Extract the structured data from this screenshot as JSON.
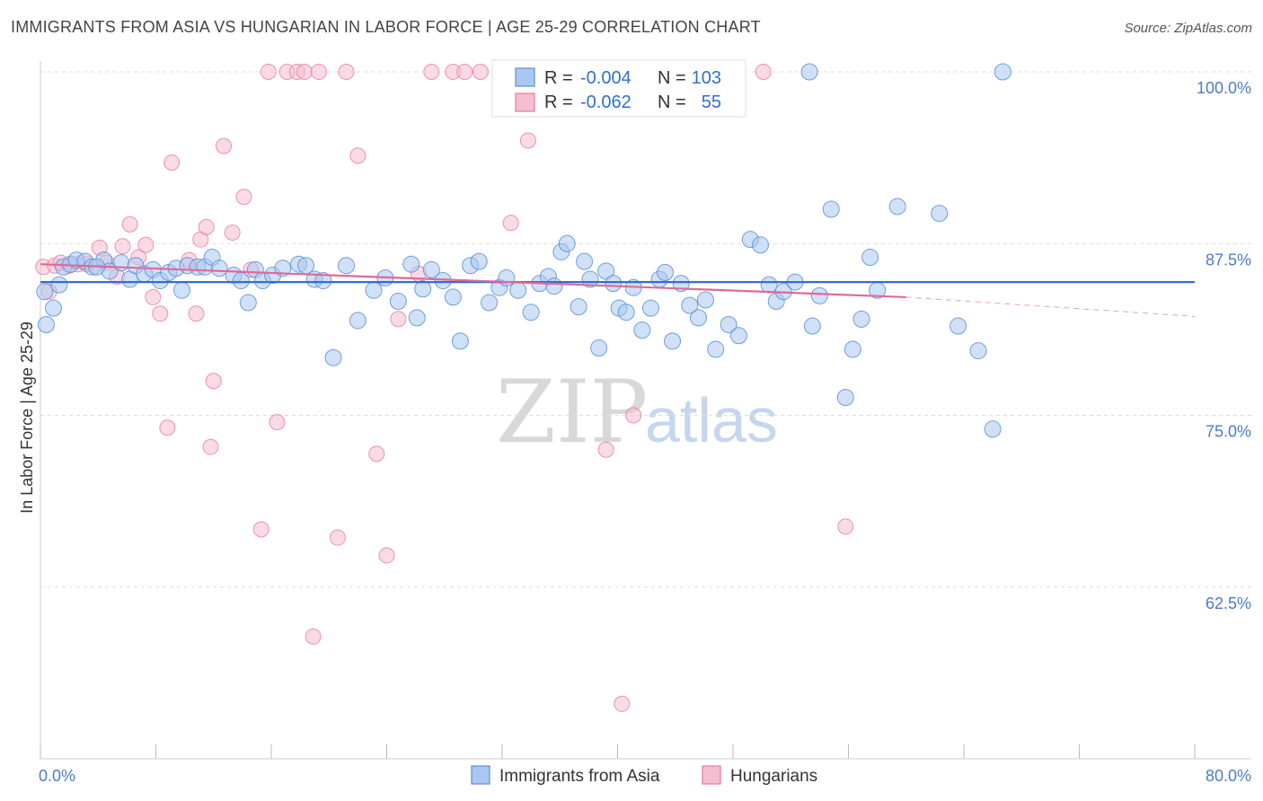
{
  "title": "IMMIGRANTS FROM ASIA VS HUNGARIAN IN LABOR FORCE | AGE 25-29 CORRELATION CHART",
  "source": "Source: ZipAtlas.com",
  "watermark": {
    "zip": "ZIP",
    "atlas": "atlas"
  },
  "colors": {
    "blue": "#5b8ed8",
    "blue_fill": "#a9c8f0",
    "pink": "#e8799f",
    "pink_fill": "#f5bdd0",
    "axis_text": "#4a7cc9"
  },
  "legend": {
    "r_label": "R =",
    "n_label": "N =",
    "series": [
      {
        "name": "Immigrants from Asia",
        "r": "-0.004",
        "n": "103"
      },
      {
        "name": "Hungarians",
        "r": "-0.062",
        "n": "55"
      }
    ]
  },
  "chart_data": {
    "type": "scatter",
    "title": "IMMIGRANTS FROM ASIA VS HUNGARIAN IN LABOR FORCE | AGE 25-29 CORRELATION CHART",
    "xlabel": "",
    "ylabel": "In Labor Force | Age 25-29",
    "xlim": [
      0,
      80
    ],
    "ylim": [
      50,
      100
    ],
    "x_tick_labels": [
      "0.0%",
      "80.0%"
    ],
    "y_ticks": [
      62.5,
      75.0,
      87.5,
      100.0
    ],
    "y_tick_labels": [
      "62.5%",
      "75.0%",
      "87.5%",
      "100.0%"
    ],
    "grid": true,
    "series": [
      {
        "name": "Immigrants from Asia",
        "r": -0.004,
        "n": 103,
        "trend": {
          "x": [
            0,
            80
          ],
          "y": [
            84.7,
            84.7
          ]
        },
        "points": [
          [
            0.4,
            81.6
          ],
          [
            0.9,
            82.8
          ],
          [
            1.3,
            84.5
          ],
          [
            1.6,
            85.8
          ],
          [
            2.1,
            86.0
          ],
          [
            2.5,
            86.3
          ],
          [
            3.1,
            86.2
          ],
          [
            3.6,
            85.8
          ],
          [
            4.4,
            86.3
          ],
          [
            4.8,
            85.5
          ],
          [
            5.6,
            86.1
          ],
          [
            6.2,
            84.9
          ],
          [
            6.6,
            85.9
          ],
          [
            7.2,
            85.3
          ],
          [
            7.8,
            85.6
          ],
          [
            8.3,
            84.8
          ],
          [
            8.9,
            85.4
          ],
          [
            9.4,
            85.7
          ],
          [
            9.8,
            84.1
          ],
          [
            10.2,
            85.9
          ],
          [
            10.9,
            85.8
          ],
          [
            11.4,
            85.8
          ],
          [
            11.9,
            86.5
          ],
          [
            12.4,
            85.7
          ],
          [
            13.4,
            85.2
          ],
          [
            13.9,
            84.8
          ],
          [
            14.4,
            83.2
          ],
          [
            14.9,
            85.6
          ],
          [
            15.4,
            84.8
          ],
          [
            16.1,
            85.2
          ],
          [
            16.8,
            85.7
          ],
          [
            17.9,
            86.0
          ],
          [
            18.4,
            85.9
          ],
          [
            19.0,
            84.9
          ],
          [
            19.6,
            84.8
          ],
          [
            20.3,
            79.2
          ],
          [
            21.2,
            85.9
          ],
          [
            22.0,
            81.9
          ],
          [
            23.1,
            84.1
          ],
          [
            23.9,
            85.0
          ],
          [
            24.8,
            83.3
          ],
          [
            25.7,
            86.0
          ],
          [
            26.1,
            82.1
          ],
          [
            26.5,
            84.2
          ],
          [
            27.1,
            85.6
          ],
          [
            27.9,
            84.8
          ],
          [
            28.6,
            83.6
          ],
          [
            29.1,
            80.4
          ],
          [
            29.8,
            85.9
          ],
          [
            30.4,
            86.2
          ],
          [
            31.1,
            83.2
          ],
          [
            31.8,
            84.3
          ],
          [
            32.3,
            85.0
          ],
          [
            33.1,
            84.1
          ],
          [
            34.0,
            82.5
          ],
          [
            34.6,
            84.6
          ],
          [
            35.2,
            85.1
          ],
          [
            35.6,
            84.4
          ],
          [
            36.1,
            86.9
          ],
          [
            36.5,
            87.5
          ],
          [
            37.3,
            82.9
          ],
          [
            37.7,
            86.2
          ],
          [
            38.1,
            84.9
          ],
          [
            38.7,
            79.9
          ],
          [
            39.2,
            85.5
          ],
          [
            39.7,
            84.6
          ],
          [
            40.1,
            82.8
          ],
          [
            40.6,
            82.5
          ],
          [
            41.1,
            84.3
          ],
          [
            41.7,
            81.2
          ],
          [
            42.3,
            82.8
          ],
          [
            42.9,
            84.9
          ],
          [
            43.3,
            85.4
          ],
          [
            43.8,
            80.4
          ],
          [
            44.4,
            84.6
          ],
          [
            45.0,
            83.0
          ],
          [
            45.6,
            82.1
          ],
          [
            46.1,
            83.4
          ],
          [
            46.8,
            79.8
          ],
          [
            47.7,
            81.6
          ],
          [
            48.4,
            80.8
          ],
          [
            49.2,
            87.8
          ],
          [
            49.9,
            87.4
          ],
          [
            50.5,
            84.5
          ],
          [
            51.0,
            83.3
          ],
          [
            51.5,
            84.0
          ],
          [
            52.3,
            84.7
          ],
          [
            53.5,
            81.5
          ],
          [
            54.0,
            83.7
          ],
          [
            54.8,
            90.0
          ],
          [
            55.8,
            76.3
          ],
          [
            56.3,
            79.8
          ],
          [
            56.9,
            82.0
          ],
          [
            57.5,
            86.5
          ],
          [
            58.0,
            84.1
          ],
          [
            59.4,
            90.2
          ],
          [
            62.3,
            89.7
          ],
          [
            63.6,
            81.5
          ],
          [
            65.0,
            79.7
          ],
          [
            66.0,
            74.0
          ],
          [
            0.3,
            84.0
          ],
          [
            3.9,
            85.8
          ],
          [
            53.3,
            100.0
          ],
          [
            66.7,
            100.0
          ]
        ]
      },
      {
        "name": "Hungarians",
        "r": -0.062,
        "n": 55,
        "trend": {
          "x": [
            0,
            60
          ],
          "y": [
            86.0,
            83.6
          ]
        },
        "trend_extension": {
          "x": [
            60,
            80
          ],
          "y": [
            83.6,
            82.2
          ]
        },
        "points": [
          [
            0.2,
            85.8
          ],
          [
            0.6,
            84.0
          ],
          [
            1.0,
            85.9
          ],
          [
            1.4,
            86.1
          ],
          [
            2.0,
            85.9
          ],
          [
            2.6,
            86.0
          ],
          [
            3.2,
            86.0
          ],
          [
            4.1,
            87.2
          ],
          [
            4.6,
            86.1
          ],
          [
            5.3,
            85.1
          ],
          [
            5.7,
            87.3
          ],
          [
            6.2,
            88.9
          ],
          [
            6.8,
            86.5
          ],
          [
            7.3,
            87.4
          ],
          [
            7.8,
            83.6
          ],
          [
            8.3,
            82.4
          ],
          [
            8.8,
            74.1
          ],
          [
            9.1,
            93.4
          ],
          [
            10.3,
            86.3
          ],
          [
            10.8,
            82.4
          ],
          [
            11.1,
            87.8
          ],
          [
            11.5,
            88.7
          ],
          [
            11.8,
            72.7
          ],
          [
            12.0,
            77.5
          ],
          [
            12.7,
            94.6
          ],
          [
            13.3,
            88.3
          ],
          [
            14.1,
            90.9
          ],
          [
            14.6,
            85.6
          ],
          [
            15.3,
            66.7
          ],
          [
            15.8,
            100.0
          ],
          [
            16.4,
            74.5
          ],
          [
            17.1,
            100.0
          ],
          [
            17.8,
            100.0
          ],
          [
            18.3,
            100.0
          ],
          [
            18.9,
            58.9
          ],
          [
            19.3,
            100.0
          ],
          [
            20.6,
            66.1
          ],
          [
            21.2,
            100.0
          ],
          [
            22.0,
            93.9
          ],
          [
            23.3,
            72.2
          ],
          [
            24.0,
            64.8
          ],
          [
            24.8,
            82.0
          ],
          [
            26.2,
            85.3
          ],
          [
            27.1,
            100.0
          ],
          [
            28.6,
            100.0
          ],
          [
            29.4,
            100.0
          ],
          [
            30.5,
            100.0
          ],
          [
            32.6,
            89.0
          ],
          [
            33.8,
            95.0
          ],
          [
            37.4,
            100.0
          ],
          [
            39.2,
            72.5
          ],
          [
            40.3,
            54.0
          ],
          [
            41.1,
            75.0
          ],
          [
            50.1,
            100.0
          ],
          [
            55.8,
            66.9
          ]
        ]
      }
    ]
  }
}
